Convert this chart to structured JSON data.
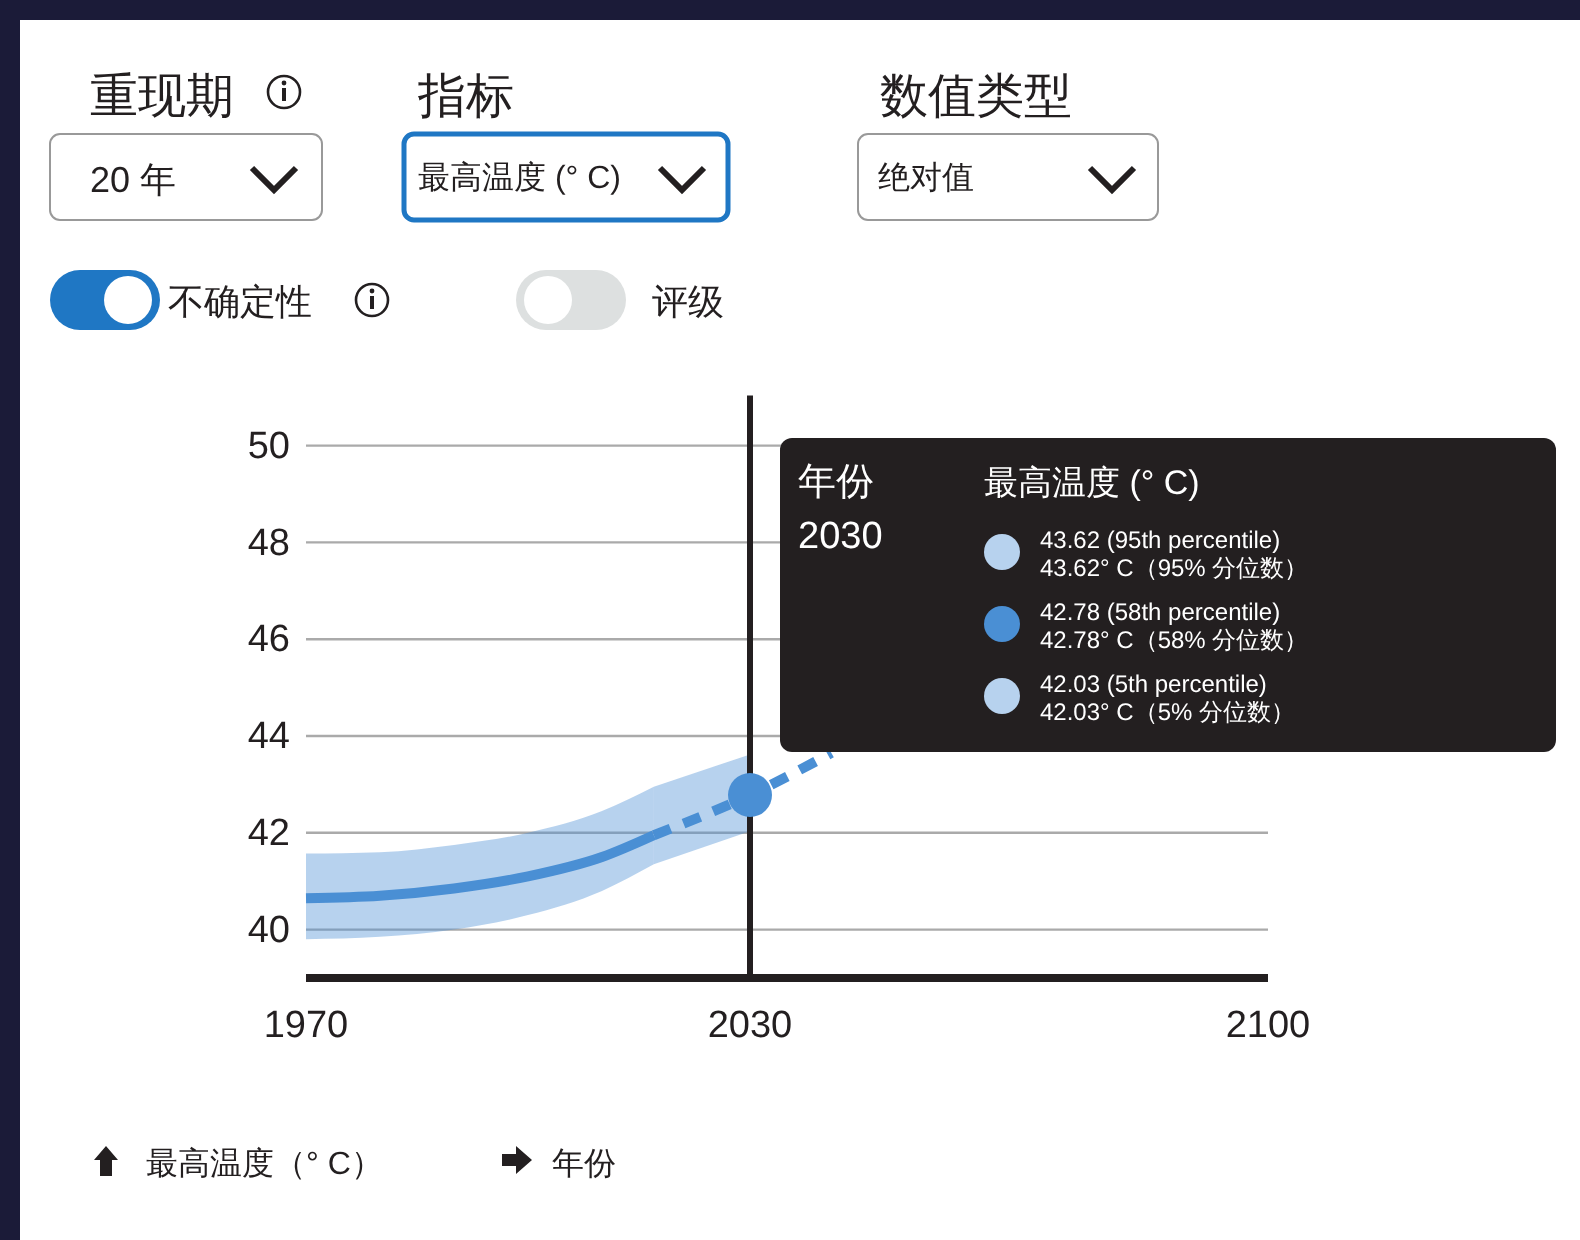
{
  "chart_data": {
    "type": "line",
    "xlabel": "年份",
    "ylabel": "最高温度（° C）",
    "xlim": [
      1970,
      2100
    ],
    "xticks": [
      1970,
      2030,
      2100
    ],
    "ylim": [
      39,
      50
    ],
    "yticks": [
      40,
      42,
      44,
      46,
      48,
      50
    ],
    "grid": "y",
    "ref_lines": [
      {
        "axis": "x",
        "value": 2030,
        "color": "#231f20"
      }
    ],
    "series": [
      {
        "color": "#4a8fd4",
        "line_style": "solid",
        "x": [
          1970,
          1980,
          1990,
          2000,
          2010,
          2017
        ],
        "values": [
          40.65,
          40.7,
          40.85,
          41.1,
          41.5,
          41.95
        ],
        "lower": [
          39.8,
          39.85,
          40.0,
          40.3,
          40.8,
          41.35
        ],
        "upper": [
          41.57,
          41.6,
          41.75,
          42.0,
          42.45,
          42.95
        ]
      },
      {
        "color": "#4a8fd4",
        "line_style": "dashed",
        "x": [
          2017,
          2030,
          2041
        ],
        "values": [
          41.95,
          42.78,
          43.65
        ],
        "lower": [
          41.35,
          42.03,
          null
        ],
        "upper": [
          42.95,
          43.62,
          null
        ]
      },
      {
        "type": "scatter",
        "color": "#4a8fd4",
        "x": [
          2030
        ],
        "values": [
          42.78
        ]
      }
    ],
    "annotations": [
      "重现期",
      "20 年",
      "指标",
      "最高温度 (° C)",
      "数值类型",
      "绝对值",
      "不确定性",
      "评级",
      "年份",
      "2030",
      "最高温度 (° C)",
      "43.62 (95th percentile)",
      "43.62° C（95% 分位数）",
      "42.78 (58th percentile)",
      "42.78° C（58% 分位数）",
      "42.03 (5th percentile)",
      "42.03° C（5% 分位数）"
    ]
  }
}
